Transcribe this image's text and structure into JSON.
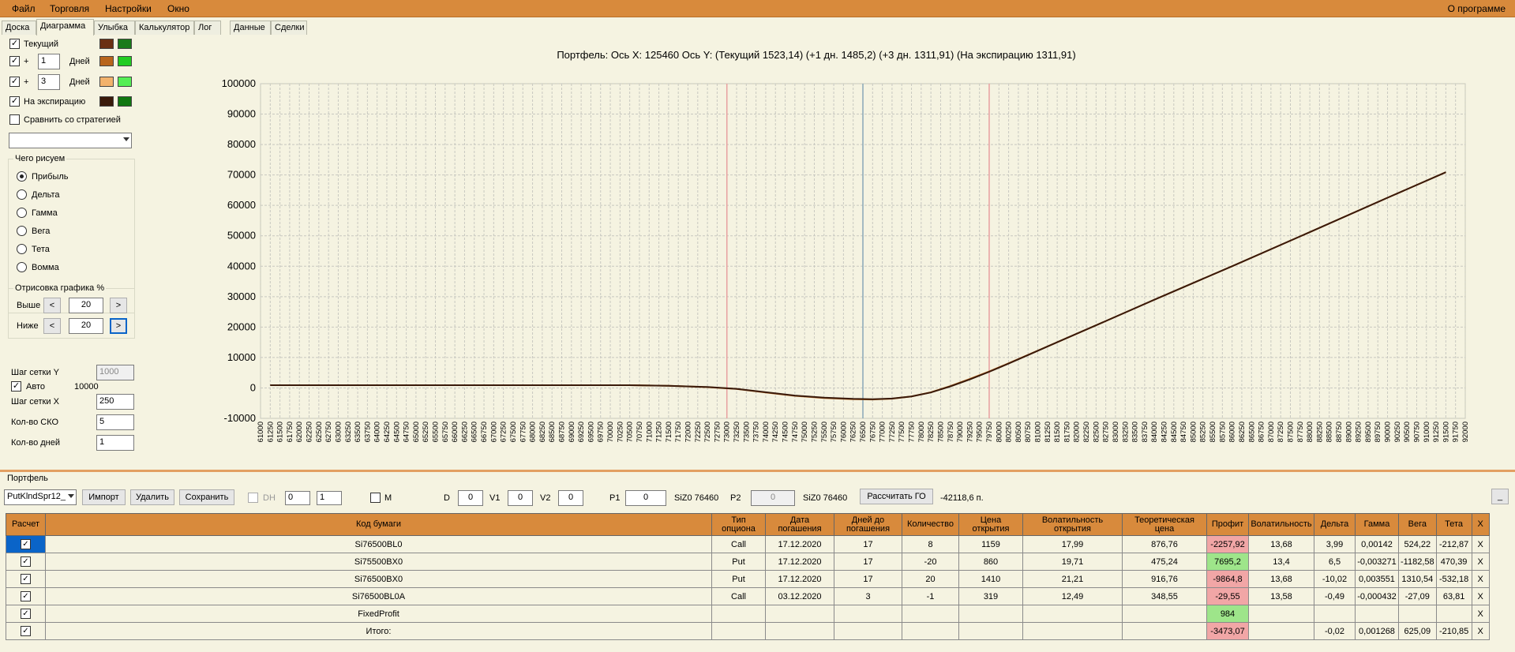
{
  "menu": [
    "Файл",
    "Торговля",
    "Настройки",
    "Окно"
  ],
  "about": "О программе",
  "tabs": [
    "Доска",
    "Диаграмма",
    "Улыбка",
    "Калькулятор",
    "Лог",
    "Данные",
    "Сделки"
  ],
  "active_tab": "Диаграмма",
  "left": {
    "current_label": "Текущий",
    "days1_plus": "+",
    "days1_value": "1",
    "days_label": "Дней",
    "days2_plus": "+",
    "days2_value": "3",
    "expiry_label": "На экспирацию",
    "compare_label": "Сравнить со стратегией",
    "draw_group": "Чего рисуем",
    "draw_options": [
      "Прибыль",
      "Дельта",
      "Гамма",
      "Вега",
      "Тета",
      "Вомма"
    ],
    "draw_selected": "Прибыль",
    "render_group": "Отрисовка графика %",
    "above_label": "Выше",
    "above_value": "20",
    "below_label": "Ниже",
    "below_value": "20",
    "prev_glyph": "<",
    "next_glyph": ">",
    "grid_y_label": "Шаг сетки Y",
    "grid_y_value": "1000",
    "auto_label": "Авто",
    "auto_value": "10000",
    "grid_x_label": "Шаг сетки X",
    "grid_x_value": "250",
    "sko_label": "Кол-во СКО",
    "sko_value": "5",
    "days_count_label": "Кол-во дней",
    "days_count_value": "1",
    "colors": {
      "current": [
        "#6b2f12",
        "#1a7a1a"
      ],
      "plus1": [
        "#b8651c",
        "#22cc22"
      ],
      "plus3": [
        "#f2b26c",
        "#55ee55"
      ],
      "expiry": [
        "#3a1a0a",
        "#117711"
      ]
    }
  },
  "chart_data": {
    "type": "line",
    "title": "Портфель: Ось X: 125460 Ось Y:  (Текущий 1523,14)  (+1 дн. 1485,2)  (+3 дн. 1311,91)  (На экспирацию 1311,91)",
    "x_ticks": [
      61000,
      61250,
      61500,
      61750,
      62000,
      62250,
      62500,
      62750,
      63000,
      63250,
      63500,
      63750,
      64000,
      64250,
      64500,
      64750,
      65000,
      65250,
      65500,
      65750,
      66000,
      66250,
      66500,
      66750,
      67000,
      67250,
      67500,
      67750,
      68000,
      68250,
      68500,
      68750,
      69000,
      69250,
      69500,
      69750,
      70000,
      70250,
      70500,
      70750,
      71000,
      71250,
      71500,
      71750,
      72000,
      72250,
      72500,
      72750,
      73000,
      73250,
      73500,
      73750,
      74000,
      74250,
      74500,
      74750,
      75000,
      75250,
      75500,
      75750,
      76000,
      76250,
      76500,
      76750,
      77000,
      77250,
      77500,
      77750,
      78000,
      78250,
      78500,
      78750,
      79000,
      79250,
      79500,
      79750,
      80000,
      80250,
      80500,
      80750,
      81000,
      81250,
      81500,
      81750,
      82000,
      82250,
      82500,
      82750,
      83000,
      83250,
      83500,
      83750,
      84000,
      84250,
      84500,
      84750,
      85000,
      85250,
      85500,
      85750,
      86000,
      86250,
      86500,
      86750,
      87000,
      87250,
      87500,
      87750,
      88000,
      88250,
      88500,
      88750,
      89000,
      89250,
      89500,
      89750,
      90000,
      90250,
      90500,
      90750,
      91000,
      91250,
      91500,
      91750,
      92000
    ],
    "y_ticks": [
      "100000",
      "90000",
      "80000",
      "70000",
      "60000",
      "50000",
      "40000",
      "30000",
      "20000",
      "10000",
      "0",
      "-10000"
    ],
    "xlim": [
      61000,
      92000
    ],
    "ylim": [
      -10000,
      100000
    ],
    "grid": true,
    "vlines": [
      {
        "x": 73000,
        "color": "#e8a0a0"
      },
      {
        "x": 76500,
        "color": "#8aa8b8"
      },
      {
        "x": 79750,
        "color": "#e8a0a0"
      }
    ],
    "series": [
      {
        "color": "#3a1a0a",
        "x": [
          61250,
          63000,
          65000,
          67000,
          69000,
          70500,
          71500,
          72500,
          73250,
          74000,
          74750,
          75500,
          76250,
          76750,
          77250,
          77750,
          78250,
          78750,
          79250,
          79750,
          80250,
          80750,
          81500,
          82500,
          84000,
          86000,
          88000,
          90000,
          91500
        ],
        "y": [
          900,
          900,
          900,
          900,
          900,
          900,
          700,
          300,
          -300,
          -1400,
          -2500,
          -3200,
          -3600,
          -3700,
          -3500,
          -2800,
          -1500,
          500,
          2800,
          5300,
          8000,
          10800,
          15000,
          20600,
          29000,
          40000,
          51200,
          62500,
          70900
        ]
      },
      {
        "color": "#b8651c",
        "x": [
          61250,
          65000,
          69000,
          70500,
          71500,
          72500,
          73250,
          74000,
          74750,
          75500,
          76250,
          76750,
          77250,
          77750,
          78250,
          78750,
          79250,
          79750,
          80250,
          80750,
          81500,
          82500,
          84000,
          86000,
          88000,
          90000,
          91500
        ],
        "y": [
          900,
          900,
          900,
          900,
          700,
          250,
          -350,
          -1500,
          -2600,
          -3300,
          -3700,
          -3800,
          -3550,
          -2800,
          -1450,
          600,
          2950,
          5400,
          8100,
          10850,
          15000,
          20600,
          29000,
          40000,
          51200,
          62500,
          70900
        ]
      }
    ]
  },
  "portfolio": {
    "section_label": "Портфель",
    "strategy": "PutKlndSpr12_",
    "import": "Импорт",
    "delete": "Удалить",
    "save": "Сохранить",
    "dh_label": "DH",
    "spin1": "0",
    "spin2": "1",
    "m_label": "M",
    "d_label": "D",
    "d_value": "0",
    "v1_label": "V1",
    "v1_value": "0",
    "v2_label": "V2",
    "v2_value": "0",
    "p1_label": "P1",
    "p1_value": "0",
    "sizo1": "SiZ0 76460",
    "p2_label": "P2",
    "p2_value": "0",
    "sizo2": "SiZ0 76460",
    "calc_go": "Рассчитать ГО",
    "go_value": "-42118,6 п.",
    "collapse": "_",
    "columns": [
      "Расчет",
      "Код бумаги",
      "Тип опциона",
      "Дата погашения",
      "Дней до погашения",
      "Количество",
      "Цена открытия",
      "Волатильность открытия",
      "Теоретическая цена",
      "Профит",
      "Волатильность",
      "Дельта",
      "Гамма",
      "Вега",
      "Тета",
      "X"
    ],
    "rows": [
      {
        "code": "Si76500BL0",
        "type": "Call",
        "date": "17.12.2020",
        "days": "17",
        "qty": "8",
        "price": "1159",
        "vol_open": "17,99",
        "theor": "876,76",
        "profit": "-2257,92",
        "profit_sign": "neg",
        "vol": "13,68",
        "delta": "3,99",
        "gamma": "0,00142",
        "vega": "524,22",
        "theta": "-212,87",
        "x": "X"
      },
      {
        "code": "Si75500BX0",
        "type": "Put",
        "date": "17.12.2020",
        "days": "17",
        "qty": "-20",
        "price": "860",
        "vol_open": "19,71",
        "theor": "475,24",
        "profit": "7695,2",
        "profit_sign": "pos",
        "vol": "13,4",
        "delta": "6,5",
        "gamma": "-0,003271",
        "vega": "-1182,58",
        "theta": "470,39",
        "x": "X"
      },
      {
        "code": "Si76500BX0",
        "type": "Put",
        "date": "17.12.2020",
        "days": "17",
        "qty": "20",
        "price": "1410",
        "vol_open": "21,21",
        "theor": "916,76",
        "profit": "-9864,8",
        "profit_sign": "neg",
        "vol": "13,68",
        "delta": "-10,02",
        "gamma": "0,003551",
        "vega": "1310,54",
        "theta": "-532,18",
        "x": "X"
      },
      {
        "code": "Si76500BL0A",
        "type": "Call",
        "date": "03.12.2020",
        "days": "3",
        "qty": "-1",
        "price": "319",
        "vol_open": "12,49",
        "theor": "348,55",
        "profit": "-29,55",
        "profit_sign": "neg",
        "vol": "13,58",
        "delta": "-0,49",
        "gamma": "-0,000432",
        "vega": "-27,09",
        "theta": "63,81",
        "x": "X"
      },
      {
        "code": "FixedProfit",
        "type": "",
        "date": "",
        "days": "",
        "qty": "",
        "price": "",
        "vol_open": "",
        "theor": "",
        "profit": "984",
        "profit_sign": "pos",
        "vol": "",
        "delta": "",
        "gamma": "",
        "vega": "",
        "theta": "",
        "x": "X"
      },
      {
        "code": "Итого:",
        "type": "",
        "date": "",
        "days": "",
        "qty": "",
        "price": "",
        "vol_open": "",
        "theor": "",
        "profit": "-3473,07",
        "profit_sign": "neg",
        "vol": "",
        "delta": "-0,02",
        "gamma": "0,001268",
        "vega": "625,09",
        "theta": "-210,85",
        "x": "X"
      }
    ]
  }
}
